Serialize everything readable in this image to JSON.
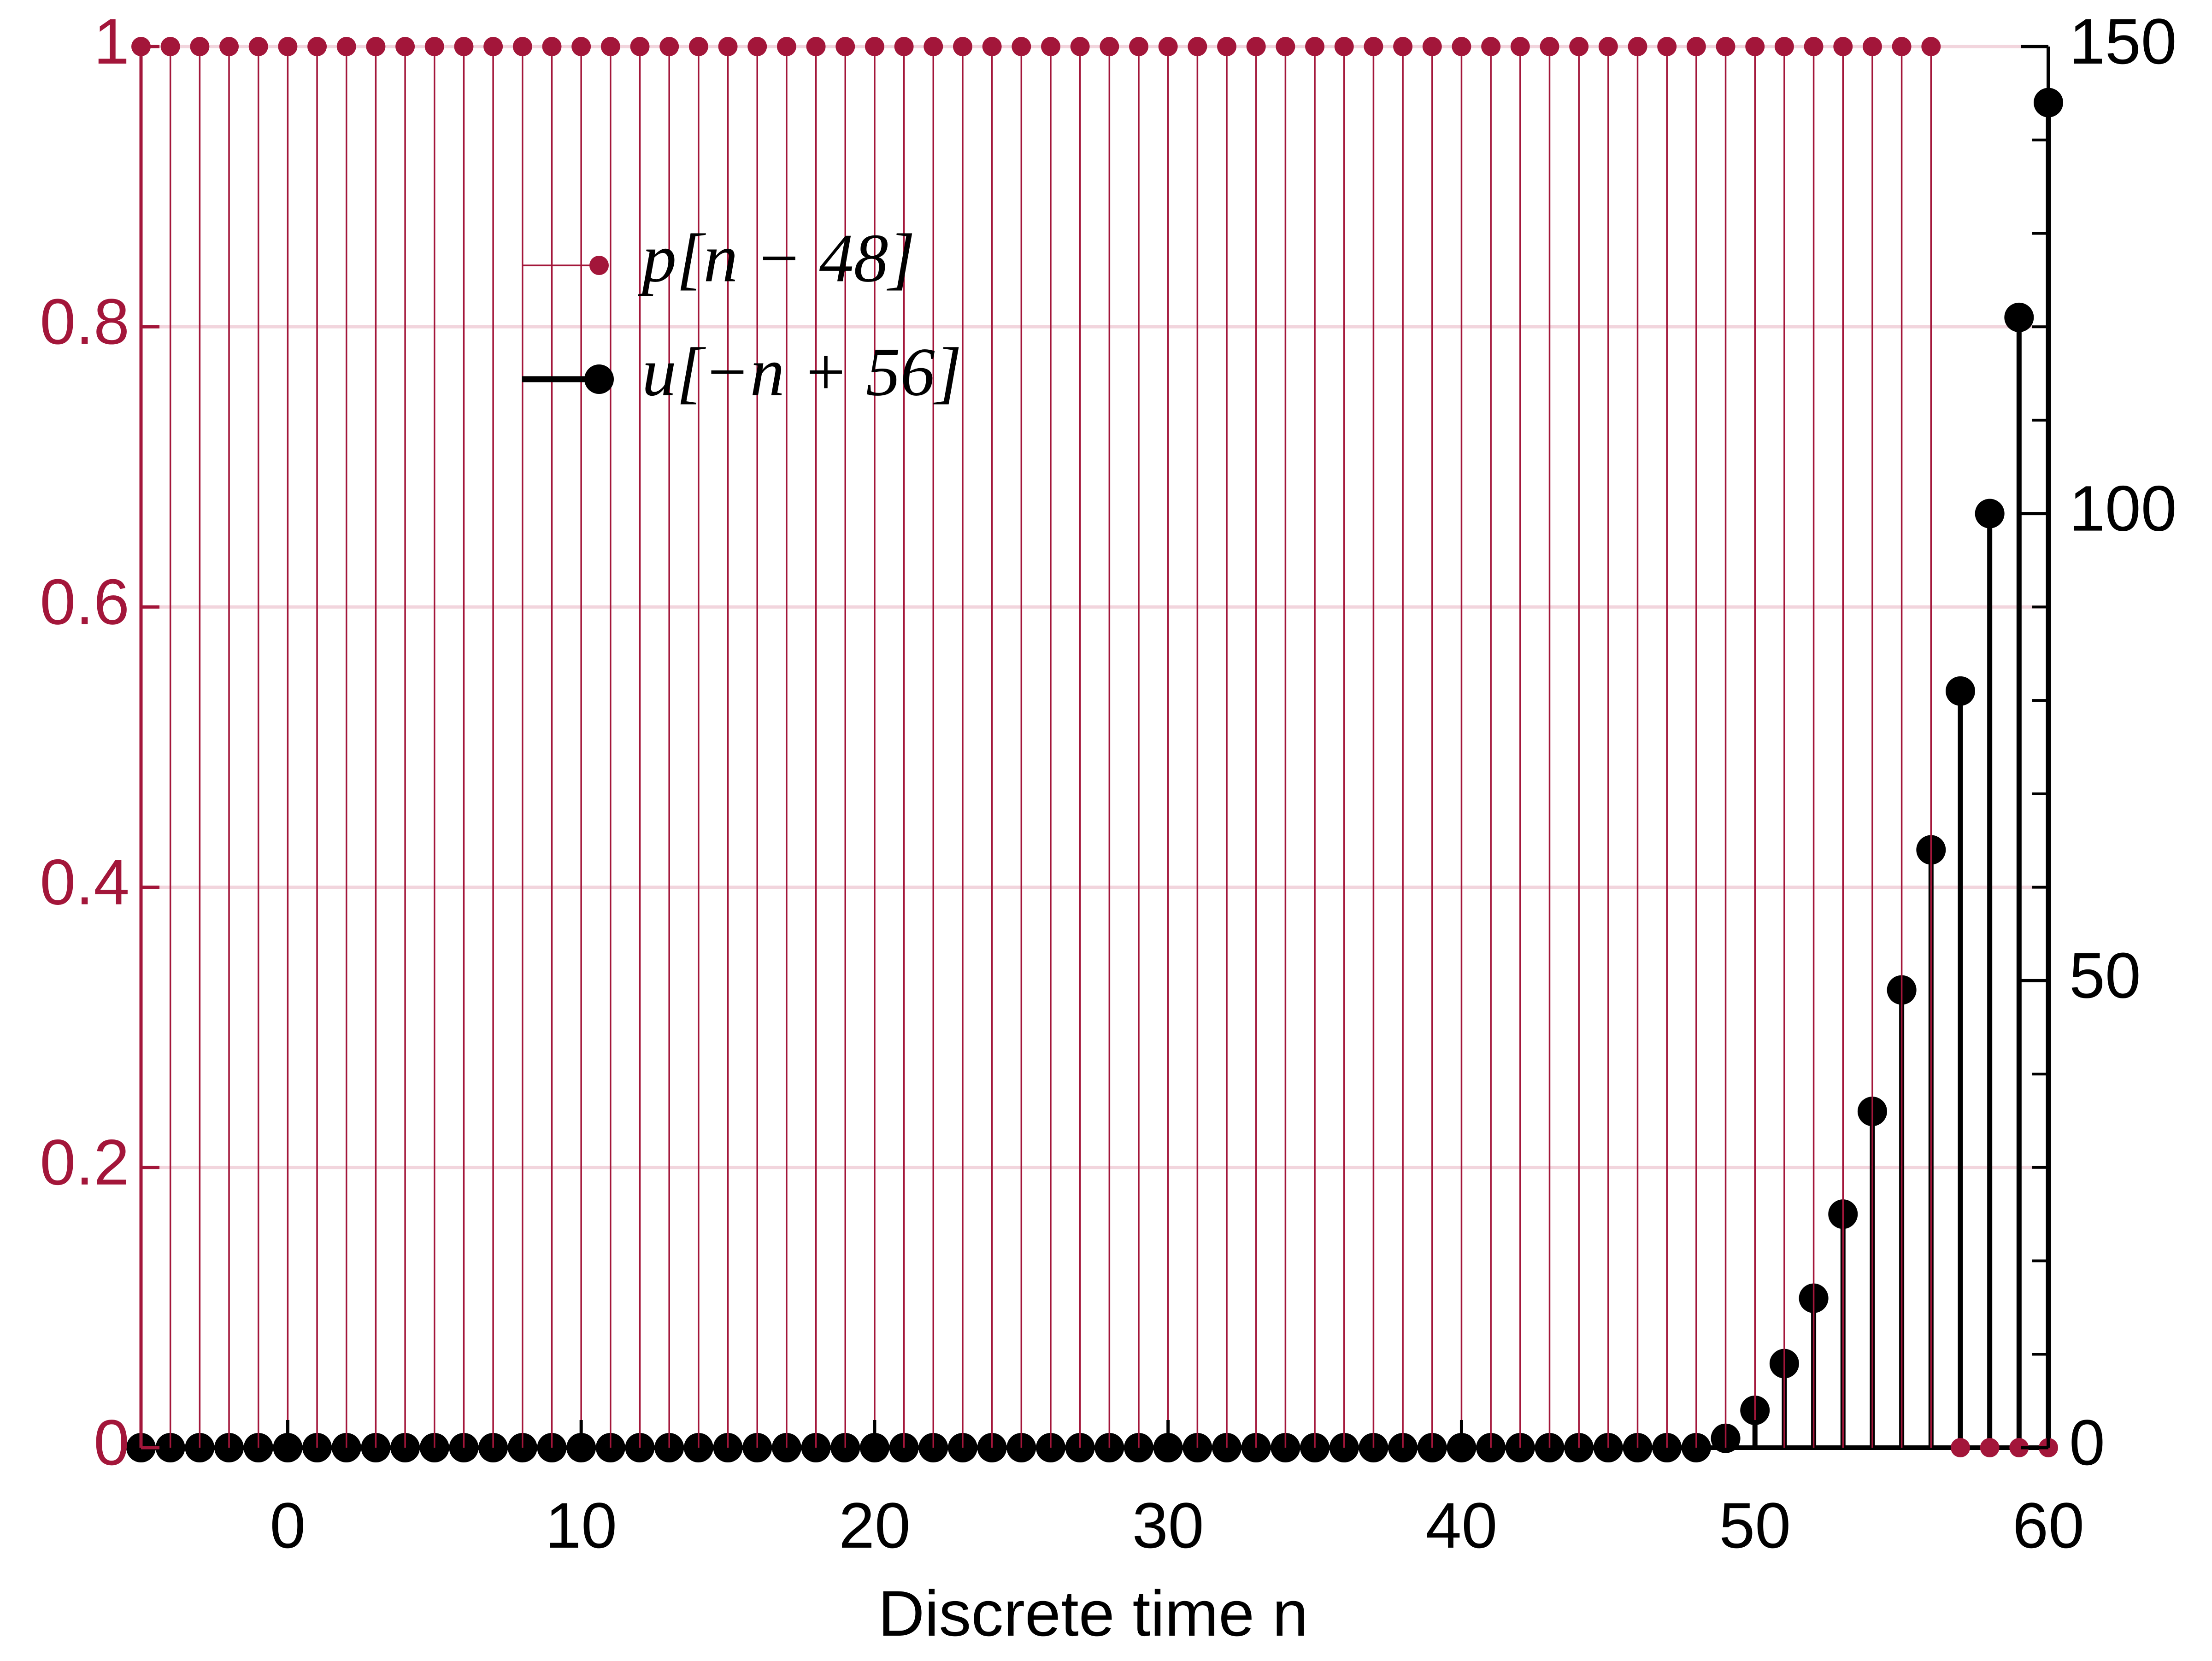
{
  "chart_data": {
    "type": "stem",
    "x_label": "Discrete time n",
    "x": [
      -5,
      -4,
      -3,
      -2,
      -1,
      0,
      1,
      2,
      3,
      4,
      5,
      6,
      7,
      8,
      9,
      10,
      11,
      12,
      13,
      14,
      15,
      16,
      17,
      18,
      19,
      20,
      21,
      22,
      23,
      24,
      25,
      26,
      27,
      28,
      29,
      30,
      31,
      32,
      33,
      34,
      35,
      36,
      37,
      38,
      39,
      40,
      41,
      42,
      43,
      44,
      45,
      46,
      47,
      48,
      49,
      50,
      51,
      52,
      53,
      54,
      55,
      56,
      57,
      58,
      59,
      60
    ],
    "xlim": [
      -5,
      60
    ],
    "xticks": [
      0,
      10,
      20,
      30,
      40,
      50,
      60
    ],
    "ylim": [
      0,
      1
    ],
    "yticks": [
      0,
      0.2,
      0.4,
      0.6,
      0.8,
      1
    ],
    "y2lim": [
      0,
      150
    ],
    "y2ticks": [
      0,
      50,
      100,
      150
    ],
    "y2minorticks": [
      10,
      20,
      30,
      40,
      60,
      70,
      80,
      90,
      110,
      120,
      130,
      140
    ],
    "grid": true,
    "left_axis_color": "#a3163a",
    "right_axis_color": "#000000",
    "series": [
      {
        "name": "p[n − 48]",
        "color": "#a3163a",
        "values": [
          1,
          1,
          1,
          1,
          1,
          1,
          1,
          1,
          1,
          1,
          1,
          1,
          1,
          1,
          1,
          1,
          1,
          1,
          1,
          1,
          1,
          1,
          1,
          1,
          1,
          1,
          1,
          1,
          1,
          1,
          1,
          1,
          1,
          1,
          1,
          1,
          1,
          1,
          1,
          1,
          1,
          1,
          1,
          1,
          1,
          1,
          1,
          1,
          1,
          1,
          1,
          1,
          1,
          1,
          1,
          1,
          1,
          1,
          1,
          1,
          1,
          1,
          0,
          0,
          0,
          0
        ]
      },
      {
        "name": "u[−n + 56]",
        "color": "#000000",
        "axis": "y2",
        "values": [
          0,
          0,
          0,
          0,
          0,
          0,
          0,
          0,
          0,
          0,
          0,
          0,
          0,
          0,
          0,
          0,
          0,
          0,
          0,
          0,
          0,
          0,
          0,
          0,
          0,
          0,
          0,
          0,
          0,
          0,
          0,
          0,
          0,
          0,
          0,
          0,
          0,
          0,
          0,
          0,
          0,
          0,
          0,
          0,
          0,
          0,
          0,
          0,
          0,
          0,
          0,
          0,
          0,
          0,
          1,
          4,
          9,
          16,
          25,
          36,
          49,
          64,
          81,
          100,
          121,
          144
        ]
      }
    ]
  }
}
